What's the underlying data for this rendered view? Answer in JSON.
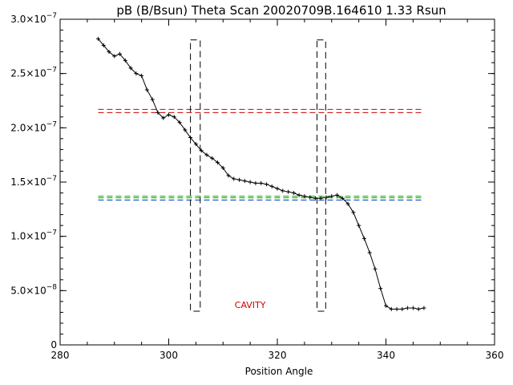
{
  "chart_data": {
    "type": "scatter",
    "title": "pB (B/Bsun) Theta Scan 20020709B.164610 1.33 Rsun",
    "xlabel": "Position Angle",
    "ylabel": "",
    "xlim": [
      280,
      360
    ],
    "ylim": [
      0,
      3e-07
    ],
    "grid": false,
    "x_ticks": [
      "280",
      "300",
      "320",
      "340",
      "360"
    ],
    "x_tick_values": [
      280,
      300,
      320,
      340,
      360
    ],
    "y_tick_values": [
      0,
      5e-08,
      1e-07,
      1.5e-07,
      2e-07,
      2.5e-07,
      3e-07
    ],
    "y_ticks": [
      {
        "mantissa": "0",
        "exp": ""
      },
      {
        "mantissa": "5.0×10",
        "exp": "−8"
      },
      {
        "mantissa": "1.0×10",
        "exp": "−7"
      },
      {
        "mantissa": "1.5×10",
        "exp": "−7"
      },
      {
        "mantissa": "2.0×10",
        "exp": "−7"
      },
      {
        "mantissa": "2.5×10",
        "exp": "−7"
      },
      {
        "mantissa": "3.0×10",
        "exp": "−7"
      }
    ],
    "series": [
      {
        "style": "line+plus",
        "color": "#000000",
        "x": [
          287,
          288,
          289,
          290,
          291,
          292,
          293,
          294,
          295,
          296,
          297,
          298,
          299,
          300,
          301,
          302,
          303,
          304,
          305,
          306,
          307,
          308,
          309,
          310,
          311,
          312,
          313,
          314,
          315,
          316,
          317,
          318,
          319,
          320,
          321,
          322,
          323,
          324,
          325,
          326,
          327,
          328,
          329,
          330,
          331,
          332,
          333,
          334,
          335,
          336,
          337,
          338,
          339,
          340,
          341,
          342,
          343,
          344,
          345,
          346,
          347
        ],
        "y": [
          2.82e-07,
          2.76e-07,
          2.7e-07,
          2.66e-07,
          2.68e-07,
          2.62e-07,
          2.55e-07,
          2.5e-07,
          2.48e-07,
          2.35e-07,
          2.26e-07,
          2.14e-07,
          2.09e-07,
          2.12e-07,
          2.1e-07,
          2.05e-07,
          1.98e-07,
          1.91e-07,
          1.85e-07,
          1.79e-07,
          1.75e-07,
          1.72e-07,
          1.68e-07,
          1.63e-07,
          1.56e-07,
          1.53e-07,
          1.52e-07,
          1.51e-07,
          1.5e-07,
          1.49e-07,
          1.49e-07,
          1.48e-07,
          1.46e-07,
          1.44e-07,
          1.42e-07,
          1.41e-07,
          1.4e-07,
          1.38e-07,
          1.37e-07,
          1.36e-07,
          1.35e-07,
          1.35e-07,
          1.36e-07,
          1.37e-07,
          1.38e-07,
          1.35e-07,
          1.3e-07,
          1.22e-07,
          1.1e-07,
          9.8e-08,
          8.5e-08,
          7e-08,
          5.2e-08,
          3.6e-08,
          3.3e-08,
          3.3e-08,
          3.3e-08,
          3.4e-08,
          3.4e-08,
          3.3e-08,
          3.4e-08
        ]
      }
    ],
    "ref_lines": [
      {
        "y": 2.17e-07,
        "color": "#cc0000",
        "x": [
          287,
          347
        ]
      },
      {
        "y": 2.14e-07,
        "color": "#cc0000",
        "x": [
          287,
          347
        ]
      },
      {
        "y": 1.37e-07,
        "color": "#00aa00",
        "x": [
          287,
          347
        ]
      },
      {
        "y": 1.355e-07,
        "color": "#00aa00",
        "x": [
          287,
          347
        ]
      },
      {
        "y": 1.335e-07,
        "color": "#0033cc",
        "x": [
          287,
          347
        ]
      }
    ],
    "boxes": [
      {
        "x": [
          304,
          305.8
        ],
        "y": [
          3.1e-08,
          2.81e-07
        ],
        "color": "#000000"
      },
      {
        "x": [
          327.3,
          328.9
        ],
        "y": [
          3.1e-08,
          2.81e-07
        ],
        "color": "#000000"
      }
    ],
    "annotations": [
      {
        "text": "CAVITY",
        "x": 315,
        "y": 3.4e-08,
        "color": "#cc0000"
      }
    ]
  }
}
